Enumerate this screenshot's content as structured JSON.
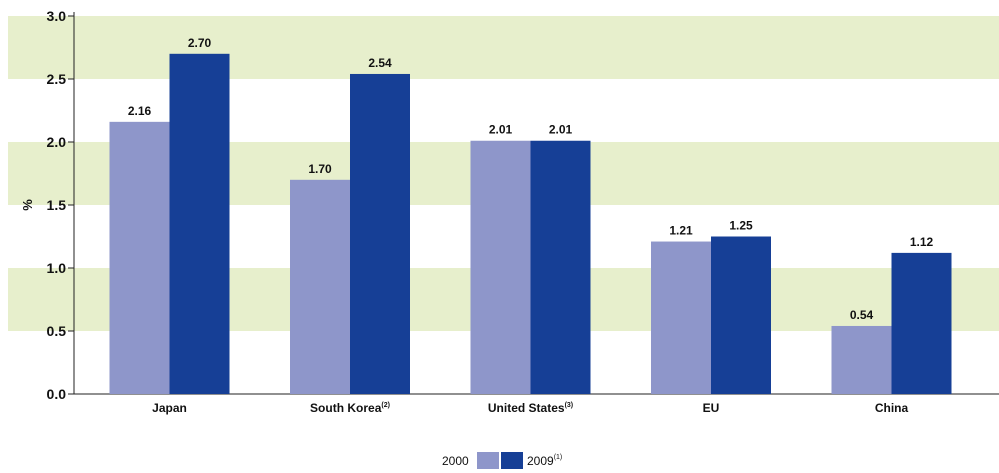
{
  "chart_data": {
    "type": "bar",
    "title": "",
    "xlabel": "",
    "ylabel": "%",
    "ylim": [
      0,
      3.0
    ],
    "yticks": [
      "0.0",
      "0.5",
      "1.0",
      "1.5",
      "2.0",
      "2.5",
      "3.0"
    ],
    "grid": "alternating horizontal bands",
    "legend_position": "bottom-center",
    "categories": [
      {
        "label": "Japan",
        "sup": ""
      },
      {
        "label": "South Korea",
        "sup": "(2)"
      },
      {
        "label": "United States",
        "sup": "(3)"
      },
      {
        "label": "EU",
        "sup": ""
      },
      {
        "label": "China",
        "sup": ""
      }
    ],
    "series": [
      {
        "name": "2000",
        "sup": "",
        "color": "#8e96ca",
        "values": [
          2.16,
          1.7,
          2.01,
          1.21,
          0.54
        ],
        "labels": [
          "2.16",
          "1.70",
          "2.01",
          "1.21",
          "0.54"
        ]
      },
      {
        "name": "2009",
        "sup": "(1)",
        "color": "#163f96",
        "values": [
          2.7,
          2.54,
          2.01,
          1.25,
          1.12
        ],
        "labels": [
          "2.70",
          "2.54",
          "2.01",
          "1.25",
          "1.12"
        ]
      }
    ],
    "band_color": "#e7efcc"
  }
}
